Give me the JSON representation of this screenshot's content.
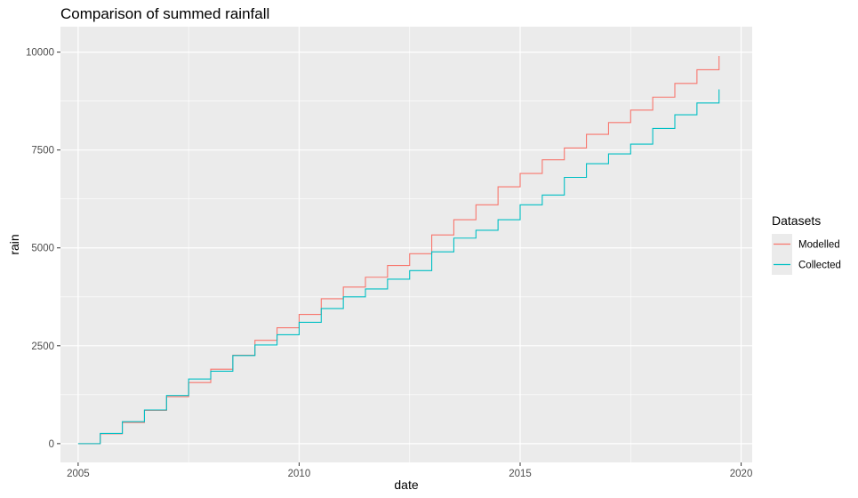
{
  "chart_data": {
    "type": "line",
    "title": "Comparison of summed rainfall",
    "xlabel": "date",
    "ylabel": "rain",
    "xlim": [
      2004.6,
      2020.25
    ],
    "ylim": [
      -480,
      10650
    ],
    "x_ticks": [
      2005,
      2010,
      2015,
      2020
    ],
    "y_ticks": [
      0,
      2500,
      5000,
      7500,
      10000
    ],
    "x_tick_labels": [
      "2005",
      "2010",
      "2015",
      "2020"
    ],
    "y_tick_labels": [
      "0",
      "2500",
      "5000",
      "7500",
      "10000"
    ],
    "grid": true,
    "legend": {
      "title": "Datasets",
      "position": "right",
      "entries": [
        {
          "label": "Modelled",
          "color": "#F8766D"
        },
        {
          "label": "Collected",
          "color": "#00BFC4"
        }
      ]
    },
    "series": [
      {
        "name": "Modelled",
        "color": "#F8766D",
        "x": [
          2005.0,
          2005.5,
          2006.0,
          2006.5,
          2007.0,
          2007.5,
          2008.0,
          2008.5,
          2009.0,
          2009.5,
          2010.0,
          2010.5,
          2011.0,
          2011.5,
          2012.0,
          2012.5,
          2013.0,
          2013.5,
          2014.0,
          2014.5,
          2015.0,
          2015.5,
          2016.0,
          2016.5,
          2017.0,
          2017.5,
          2018.0,
          2018.5,
          2019.0,
          2019.5
        ],
        "values": [
          0,
          250,
          540,
          850,
          1200,
          1560,
          1900,
          2260,
          2640,
          2960,
          3300,
          3700,
          4000,
          4250,
          4550,
          4850,
          5330,
          5720,
          6100,
          6560,
          6900,
          7250,
          7550,
          7900,
          8200,
          8520,
          8850,
          9200,
          9550,
          9900
        ]
      },
      {
        "name": "Collected",
        "color": "#00BFC4",
        "x": [
          2005.0,
          2005.5,
          2006.0,
          2006.5,
          2007.0,
          2007.5,
          2008.0,
          2008.5,
          2009.0,
          2009.5,
          2010.0,
          2010.5,
          2011.0,
          2011.5,
          2012.0,
          2012.5,
          2013.0,
          2013.5,
          2014.0,
          2014.5,
          2015.0,
          2015.5,
          2016.0,
          2016.5,
          2017.0,
          2017.5,
          2018.0,
          2018.5,
          2019.0,
          2019.5
        ],
        "values": [
          0,
          260,
          560,
          860,
          1230,
          1650,
          1850,
          2250,
          2520,
          2780,
          3100,
          3450,
          3750,
          3950,
          4200,
          4420,
          4900,
          5250,
          5450,
          5720,
          6100,
          6350,
          6800,
          7150,
          7400,
          7650,
          8050,
          8400,
          8700,
          9050
        ]
      }
    ]
  }
}
